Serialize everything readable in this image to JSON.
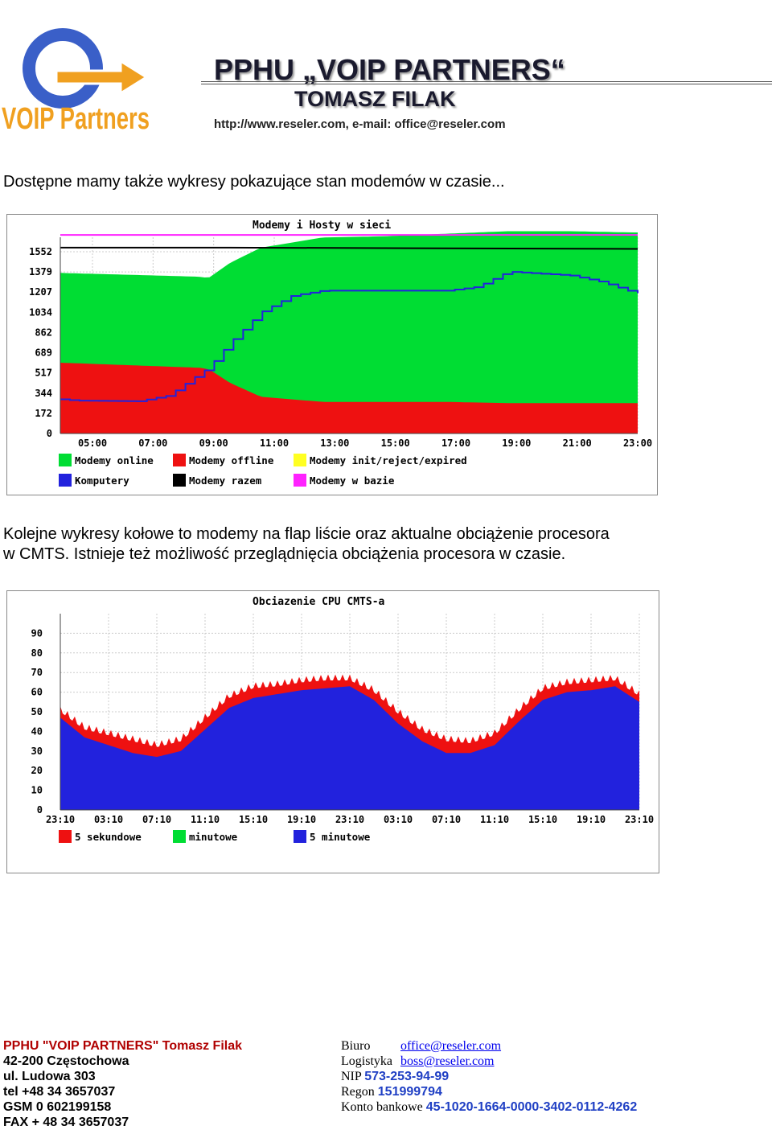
{
  "header": {
    "logo_text": "VOIP Partners",
    "logo_colors": {
      "blue": "#3a5fc8",
      "orange": "#f0a020"
    },
    "title": "PPHU „VOIP PARTNERS“",
    "subtitle": "TOMASZ FILAK",
    "contact": "http://www.reseler.com,  e-mail: office@reseler.com"
  },
  "intro_text": "Dostępne mamy także wykresy pokazujące stan modemów w czasie...",
  "chart1": {
    "chart_data": {
      "type": "area",
      "title": "Modemy i Hosty w sieci",
      "y_ticks": [
        "1552",
        "1379",
        "1207",
        "1034",
        "862",
        "689",
        "517",
        "344",
        "172",
        "0"
      ],
      "x_ticks": [
        "05:00",
        "07:00",
        "09:00",
        "11:00",
        "13:00",
        "15:00",
        "17:00",
        "19:00",
        "21:00",
        "23:00"
      ],
      "legend": [
        {
          "label": "Modemy online",
          "color": "#00dd33"
        },
        {
          "label": "Modemy offline",
          "color": "#ee1111"
        },
        {
          "label": "Modemy init/reject/expired",
          "color": "#ffff22"
        },
        {
          "label": "Komputery",
          "color": "#2222dd"
        },
        {
          "label": "Modemy razem",
          "color": "#000000"
        },
        {
          "label": "Modemy w bazie",
          "color": "#ff22ff"
        }
      ],
      "series": [
        {
          "name": "Modemy online",
          "x": [
            4.5,
            9,
            9.3,
            10,
            11,
            13,
            15,
            17,
            19,
            21,
            23,
            23.2
          ],
          "values": [
            1270,
            1240,
            1230,
            1350,
            1470,
            1550,
            1560,
            1580,
            1600,
            1600,
            1590,
            1590
          ]
        },
        {
          "name": "Modemy offline",
          "x": [
            4.5,
            9,
            9.3,
            10,
            11,
            13,
            15,
            17,
            19,
            21,
            23,
            23.2
          ],
          "values": [
            560,
            520,
            510,
            400,
            290,
            250,
            250,
            250,
            240,
            240,
            240,
            240
          ]
        },
        {
          "name": "Komputery",
          "x": [
            4.5,
            5,
            7,
            8,
            9,
            9.3,
            10,
            11,
            12,
            13,
            15,
            17,
            18,
            19,
            21,
            22,
            23,
            23.2
          ],
          "values": [
            270,
            260,
            255,
            300,
            470,
            520,
            720,
            960,
            1090,
            1130,
            1130,
            1130,
            1160,
            1280,
            1250,
            1200,
            1120,
            1110
          ]
        },
        {
          "name": "Modemy razem",
          "x": [
            4.5,
            10,
            23.2
          ],
          "values": [
            1470,
            1470,
            1460
          ]
        },
        {
          "name": "Modemy w bazie",
          "x": [
            4.5,
            23.2
          ],
          "values": [
            1570,
            1570
          ]
        }
      ],
      "ylim": [
        0,
        1552
      ]
    }
  },
  "middle_text": [
    "Kolejne wykresy kołowe to modemy na flap liście oraz aktualne obciążenie procesora",
    "w CMTS. Istnieje też możliwość przeglądnięcia obciążenia procesora w czasie."
  ],
  "chart2": {
    "chart_data": {
      "type": "area",
      "title": "Obciazenie CPU CMTS-a",
      "y_ticks": [
        "90",
        "80",
        "70",
        "60",
        "50",
        "40",
        "30",
        "20",
        "10",
        "0"
      ],
      "x_ticks": [
        "23:10",
        "03:10",
        "07:10",
        "11:10",
        "15:10",
        "19:10",
        "23:10",
        "03:10",
        "07:10",
        "11:10",
        "15:10",
        "19:10",
        "23:10"
      ],
      "legend": [
        {
          "label": "5 sekundowe",
          "color": "#ee1111"
        },
        {
          "label": "minutowe",
          "color": "#00dd33"
        },
        {
          "label": "5 minutowe",
          "color": "#2222dd"
        }
      ],
      "series": [
        {
          "name": "5 minutowe",
          "x": [
            0,
            2,
            4,
            6,
            8,
            10,
            12,
            14,
            16,
            18,
            20,
            22,
            24,
            26,
            28,
            30,
            32,
            34,
            36,
            38,
            40,
            42,
            44,
            46,
            48
          ],
          "values": [
            47,
            37,
            33,
            29,
            27,
            30,
            41,
            52,
            57,
            59,
            61,
            62,
            63,
            56,
            44,
            35,
            29,
            29,
            33,
            45,
            56,
            60,
            61,
            63,
            55
          ]
        },
        {
          "name": "5 sekundowe",
          "x": [
            0,
            2,
            4,
            6,
            8,
            10,
            12,
            14,
            16,
            18,
            20,
            22,
            24,
            26,
            28,
            30,
            32,
            34,
            36,
            38,
            40,
            42,
            44,
            46,
            48
          ],
          "values": [
            50,
            41,
            38,
            35,
            32,
            35,
            46,
            57,
            62,
            63,
            65,
            66,
            66,
            60,
            49,
            40,
            35,
            34,
            38,
            50,
            61,
            64,
            65,
            66,
            58
          ]
        }
      ],
      "ylim": [
        0,
        90
      ]
    }
  },
  "footer": {
    "company": "PPHU \"VOIP PARTNERS\" Tomasz Filak",
    "city": "42-200 Częstochowa",
    "street": "ul. Ludowa 303",
    "tel": "tel +48 34 3657037",
    "gsm": "GSM 0 602199158",
    "fax": "FAX + 48 34 3657037",
    "office_label": "Biuro",
    "office_email": "office@reseler.com",
    "logistics_label": "Logistyka",
    "logistics_email": "boss@reseler.com",
    "nip_label": "NIP",
    "nip": "573-253-94-99",
    "regon_label": "Regon",
    "regon": "151999794",
    "bank_label": "Konto bankowe",
    "bank": "45-1020-1664-0000-3402-0112-4262"
  }
}
